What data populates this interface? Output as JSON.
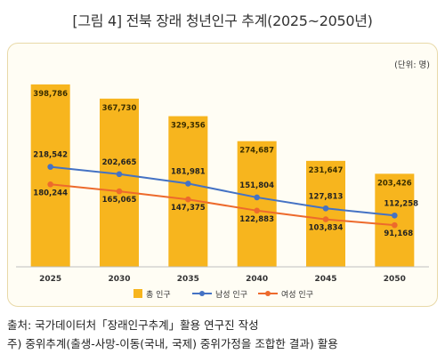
{
  "title": "[그림 4] 전북 장래 청년인구 추계(2025~2050년)",
  "unit_label": "(단위: 명)",
  "notes": [
    "출처: 국가데이터처「장래인구추계」활용 연구진 작성",
    "주) 중위추계(출생-사망-이동(국내, 국제) 중위가정을 조합한 결과) 활용"
  ],
  "colors": {
    "total": "#f7b51e",
    "male": "#4472c4",
    "female": "#ed6a2c",
    "panel_border": "#e8d9a8"
  },
  "chart_data": {
    "type": "bar",
    "categories": [
      "2025",
      "2030",
      "2035",
      "2040",
      "2045",
      "2050"
    ],
    "series": [
      {
        "name": "총 인구",
        "type": "bar",
        "values": [
          398786,
          367730,
          329356,
          274687,
          231647,
          203426
        ],
        "labels": [
          "398,786",
          "367,730",
          "329,356",
          "274,687",
          "231,647",
          "203,426"
        ]
      },
      {
        "name": "남성 인구",
        "type": "line",
        "values": [
          218542,
          202665,
          181981,
          151804,
          127813,
          112258
        ],
        "labels": [
          "218,542",
          "202,665",
          "181,981",
          "151,804",
          "127,813",
          "112,258"
        ]
      },
      {
        "name": "여성 인구",
        "type": "line",
        "values": [
          180244,
          165065,
          147375,
          122883,
          103834,
          91168
        ],
        "labels": [
          "180,244",
          "165,065",
          "147,375",
          "122,883",
          "103,834",
          "91,168"
        ]
      }
    ],
    "ylim": [
      0,
      420000
    ],
    "grid": false,
    "legend_position": "bottom"
  }
}
